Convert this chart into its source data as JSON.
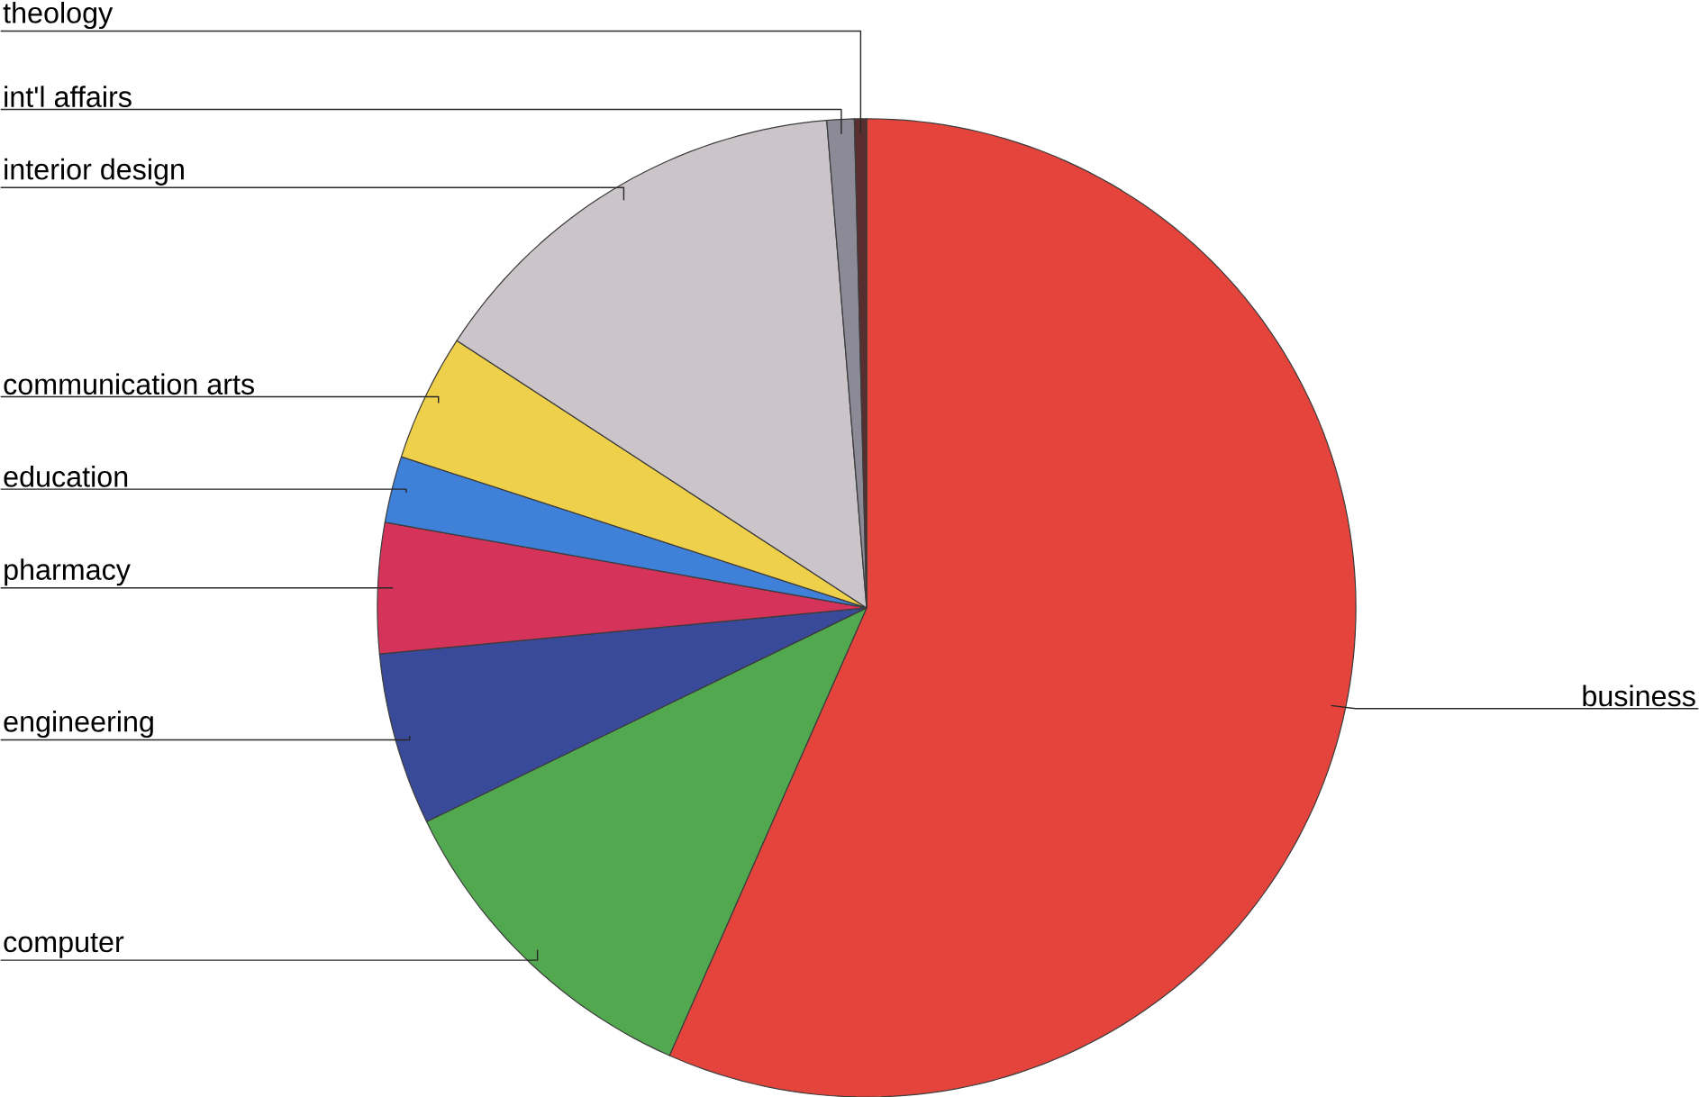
{
  "chart_data": {
    "type": "pie",
    "categories": [
      "business",
      "computer",
      "engineering",
      "pharmacy",
      "education",
      "communication arts",
      "interior design",
      "int'l affairs",
      "theology"
    ],
    "values": [
      56.6,
      11.2,
      5.7,
      4.3,
      2.2,
      4.2,
      14.5,
      0.9,
      0.4
    ],
    "colors": [
      "#e5443c",
      "#52a84e",
      "#3a4a9a",
      "#d6335a",
      "#3f80d8",
      "#efd04a",
      "#cbc4c9",
      "#8c8a96",
      "#5a2e2e"
    ]
  }
}
